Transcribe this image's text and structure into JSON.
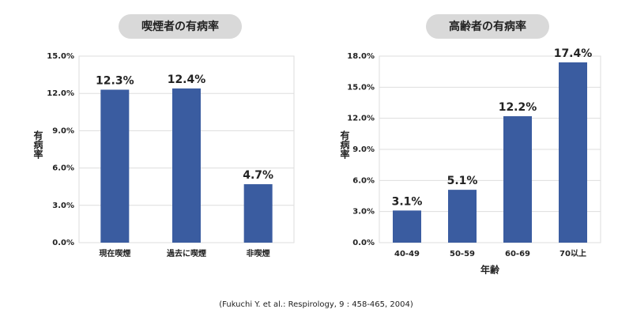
{
  "chart_data": [
    {
      "type": "bar",
      "title": "喫煙者の有病率",
      "y_label": "有病率",
      "categories": [
        "現在喫煙",
        "過去に喫煙",
        "非喫煙"
      ],
      "values": [
        12.3,
        12.4,
        4.7
      ],
      "value_labels": [
        "12.3%",
        "12.4%",
        "4.7%"
      ],
      "color": "#3a5ca0",
      "ylim": [
        0,
        15
      ],
      "yticks": [
        {
          "value": 0,
          "label": "0.0%"
        },
        {
          "value": 3,
          "label": "3.0%"
        },
        {
          "value": 6,
          "label": "6.0%"
        },
        {
          "value": 9,
          "label": "9.0%"
        },
        {
          "value": 12,
          "label": "12.0%"
        },
        {
          "value": 15,
          "label": "15.0%"
        }
      ],
      "grid": true
    },
    {
      "type": "bar",
      "title": "高齢者の有病率",
      "y_label": "有病率",
      "x_label": "年齢",
      "categories": [
        "40-49",
        "50-59",
        "60-69",
        "70以上"
      ],
      "values": [
        3.1,
        5.1,
        12.2,
        17.4
      ],
      "value_labels": [
        "3.1%",
        "5.1%",
        "12.2%",
        "17.4%"
      ],
      "color": "#3a5ca0",
      "ylim": [
        0,
        18
      ],
      "yticks": [
        {
          "value": 0,
          "label": "0.0%"
        },
        {
          "value": 3,
          "label": "3.0%"
        },
        {
          "value": 6,
          "label": "6.0%"
        },
        {
          "value": 9,
          "label": "9.0%"
        },
        {
          "value": 12,
          "label": "12.0%"
        },
        {
          "value": 15,
          "label": "15.0%"
        },
        {
          "value": 18,
          "label": "18.0%"
        }
      ],
      "grid": true
    }
  ],
  "source": "(Fukuchi Y. et al.: Respirology, 9 : 458-465, 2004)"
}
